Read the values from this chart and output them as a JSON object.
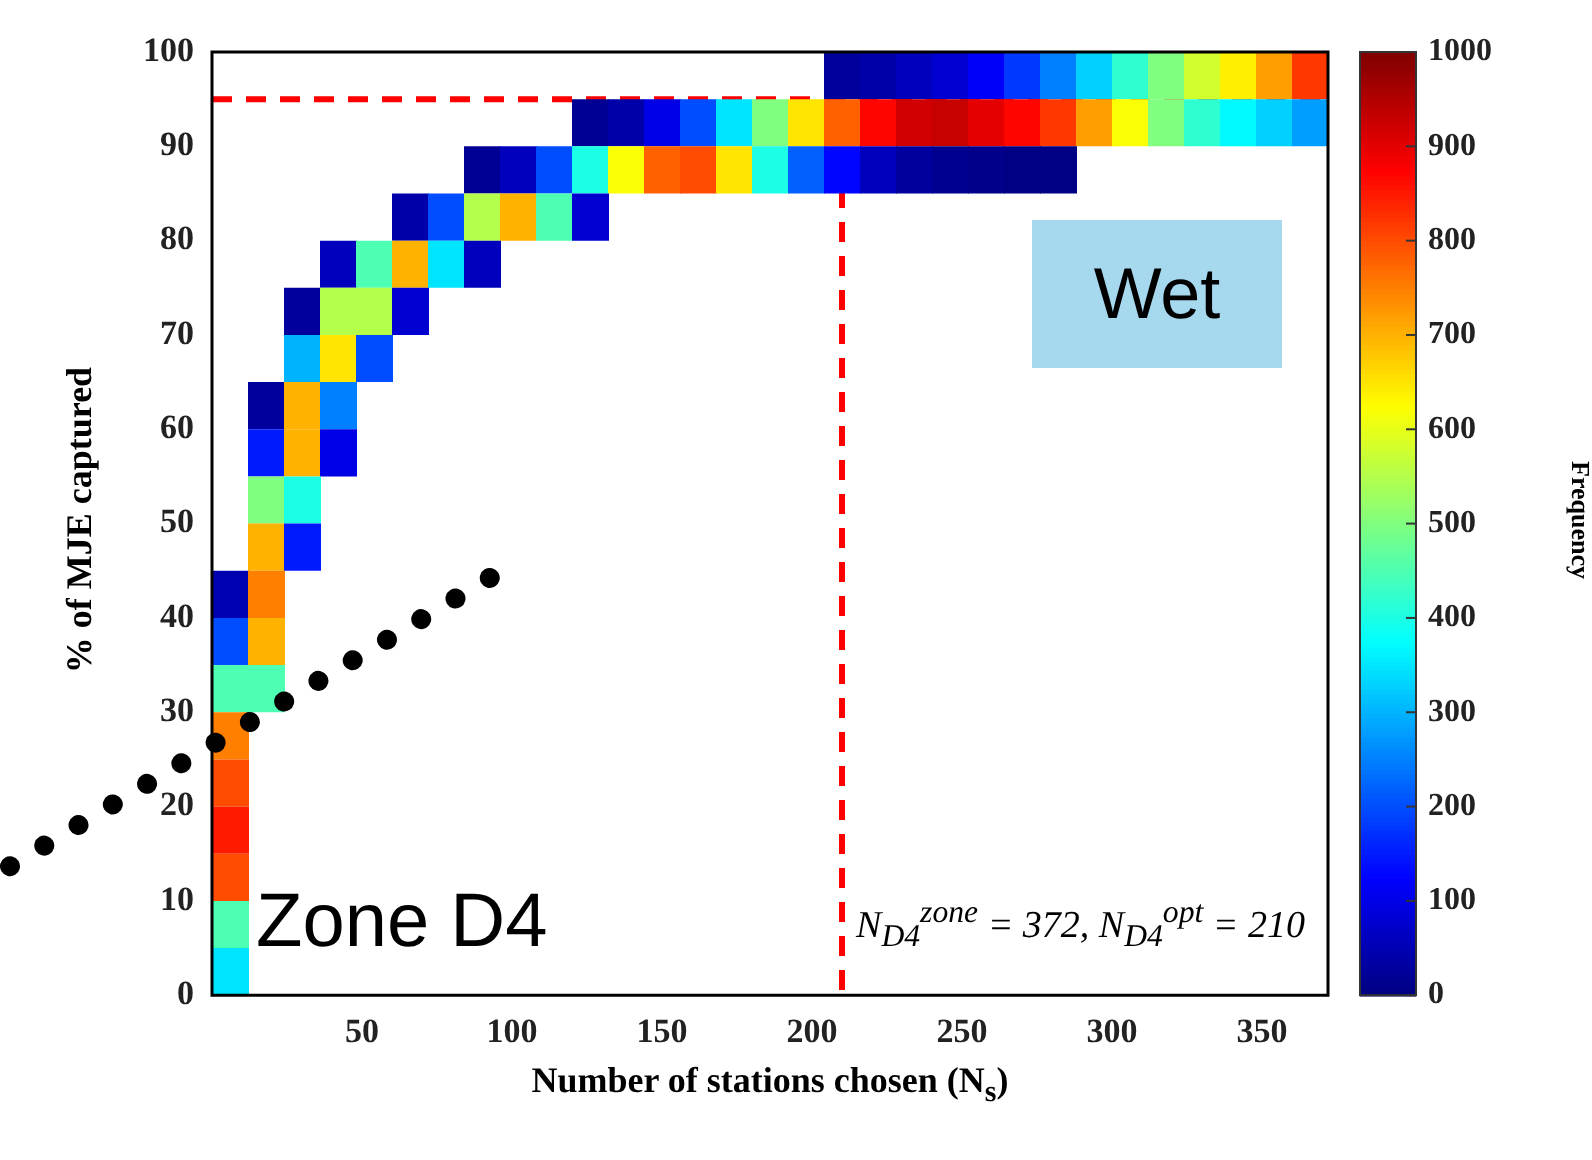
{
  "chart_data": {
    "type": "heatmap",
    "xlabel": "Number of stations chosen (N$_{s}$)",
    "ylabel": "% of MJE captured",
    "clabel": "Frequency",
    "x": [
      6,
      18,
      30,
      42,
      54,
      66,
      78,
      90,
      102,
      114,
      126,
      138,
      150,
      162,
      174,
      186,
      198,
      210,
      222,
      234,
      246,
      258,
      270,
      282,
      294,
      306,
      318,
      330,
      342,
      354,
      366
    ],
    "xlim": [
      0,
      372
    ],
    "xticks": [
      50,
      100,
      150,
      200,
      250,
      300,
      350
    ],
    "ylim": [
      0,
      100
    ],
    "yticks": [
      0,
      10,
      20,
      30,
      40,
      50,
      60,
      70,
      80,
      90,
      100
    ],
    "clim": [
      0,
      1000
    ],
    "cticks": [
      0,
      100,
      200,
      300,
      400,
      500,
      600,
      700,
      800,
      900,
      1000
    ],
    "cells": [
      [
        null,
        null,
        null,
        null,
        null,
        null,
        null,
        null,
        null,
        null,
        null,
        null,
        null,
        null,
        null,
        null,
        null,
        30,
        40,
        60,
        80,
        120,
        180,
        250,
        330,
        420,
        500,
        580,
        640,
        720,
        820
      ],
      [
        null,
        null,
        null,
        null,
        null,
        null,
        null,
        null,
        null,
        null,
        20,
        40,
        100,
        200,
        350,
        500,
        650,
        780,
        870,
        920,
        930,
        900,
        870,
        820,
        720,
        620,
        500,
        420,
        370,
        330,
        280
      ],
      [
        null,
        null,
        null,
        null,
        null,
        null,
        null,
        20,
        60,
        200,
        400,
        620,
        780,
        800,
        650,
        400,
        220,
        130,
        60,
        30,
        15,
        10,
        5,
        5,
        null,
        null,
        null,
        null,
        null,
        null,
        null
      ],
      [
        null,
        null,
        null,
        null,
        null,
        40,
        200,
        550,
        700,
        450,
        80,
        null,
        null,
        null,
        null,
        null,
        null,
        null,
        null,
        null,
        null,
        null,
        null,
        null,
        null,
        null,
        null,
        null,
        null,
        null,
        null
      ],
      [
        null,
        null,
        null,
        60,
        450,
        700,
        350,
        60,
        null,
        null,
        null,
        null,
        null,
        null,
        null,
        null,
        null,
        null,
        null,
        null,
        null,
        null,
        null,
        null,
        null,
        null,
        null,
        null,
        null,
        null,
        null
      ],
      [
        null,
        null,
        30,
        550,
        550,
        80,
        null,
        null,
        null,
        null,
        null,
        null,
        null,
        null,
        null,
        null,
        null,
        null,
        null,
        null,
        null,
        null,
        null,
        null,
        null,
        null,
        null,
        null,
        null,
        null,
        null
      ],
      [
        null,
        null,
        300,
        650,
        200,
        null,
        null,
        null,
        null,
        null,
        null,
        null,
        null,
        null,
        null,
        null,
        null,
        null,
        null,
        null,
        null,
        null,
        null,
        null,
        null,
        null,
        null,
        null,
        null,
        null,
        null
      ],
      [
        null,
        30,
        700,
        250,
        null,
        null,
        null,
        null,
        null,
        null,
        null,
        null,
        null,
        null,
        null,
        null,
        null,
        null,
        null,
        null,
        null,
        null,
        null,
        null,
        null,
        null,
        null,
        null,
        null,
        null,
        null
      ],
      [
        null,
        150,
        700,
        100,
        null,
        null,
        null,
        null,
        null,
        null,
        null,
        null,
        null,
        null,
        null,
        null,
        null,
        null,
        null,
        null,
        null,
        null,
        null,
        null,
        null,
        null,
        null,
        null,
        null,
        null,
        null
      ],
      [
        null,
        500,
        400,
        null,
        null,
        null,
        null,
        null,
        null,
        null,
        null,
        null,
        null,
        null,
        null,
        null,
        null,
        null,
        null,
        null,
        null,
        null,
        null,
        null,
        null,
        null,
        null,
        null,
        null,
        null,
        null
      ],
      [
        null,
        700,
        150,
        null,
        null,
        null,
        null,
        null,
        null,
        null,
        null,
        null,
        null,
        null,
        null,
        null,
        null,
        null,
        null,
        null,
        null,
        null,
        null,
        null,
        null,
        null,
        null,
        null,
        null,
        null,
        null
      ],
      [
        50,
        750,
        null,
        null,
        null,
        null,
        null,
        null,
        null,
        null,
        null,
        null,
        null,
        null,
        null,
        null,
        null,
        null,
        null,
        null,
        null,
        null,
        null,
        null,
        null,
        null,
        null,
        null,
        null,
        null,
        null
      ],
      [
        200,
        700,
        null,
        null,
        null,
        null,
        null,
        null,
        null,
        null,
        null,
        null,
        null,
        null,
        null,
        null,
        null,
        null,
        null,
        null,
        null,
        null,
        null,
        null,
        null,
        null,
        null,
        null,
        null,
        null,
        null
      ],
      [
        450,
        450,
        null,
        null,
        null,
        null,
        null,
        null,
        null,
        null,
        null,
        null,
        null,
        null,
        null,
        null,
        null,
        null,
        null,
        null,
        null,
        null,
        null,
        null,
        null,
        null,
        null,
        null,
        null,
        null,
        null
      ],
      [
        750,
        null,
        null,
        null,
        null,
        null,
        null,
        null,
        null,
        null,
        null,
        null,
        null,
        null,
        null,
        null,
        null,
        null,
        null,
        null,
        null,
        null,
        null,
        null,
        null,
        null,
        null,
        null,
        null,
        null,
        null
      ],
      [
        800,
        null,
        null,
        null,
        null,
        null,
        null,
        null,
        null,
        null,
        null,
        null,
        null,
        null,
        null,
        null,
        null,
        null,
        null,
        null,
        null,
        null,
        null,
        null,
        null,
        null,
        null,
        null,
        null,
        null,
        null
      ],
      [
        850,
        null,
        null,
        null,
        null,
        null,
        null,
        null,
        null,
        null,
        null,
        null,
        null,
        null,
        null,
        null,
        null,
        null,
        null,
        null,
        null,
        null,
        null,
        null,
        null,
        null,
        null,
        null,
        null,
        null,
        null
      ],
      [
        800,
        null,
        null,
        null,
        null,
        null,
        null,
        null,
        null,
        null,
        null,
        null,
        null,
        null,
        null,
        null,
        null,
        null,
        null,
        null,
        null,
        null,
        null,
        null,
        null,
        null,
        null,
        null,
        null,
        null,
        null
      ],
      [
        450,
        null,
        null,
        null,
        null,
        null,
        null,
        null,
        null,
        null,
        null,
        null,
        null,
        null,
        null,
        null,
        null,
        null,
        null,
        null,
        null,
        null,
        null,
        null,
        null,
        null,
        null,
        null,
        null,
        null,
        null
      ],
      [
        350,
        null,
        null,
        null,
        null,
        null,
        null,
        null,
        null,
        null,
        null,
        null,
        null,
        null,
        null,
        null,
        null,
        null,
        null,
        null,
        null,
        null,
        null,
        null,
        null,
        null,
        null,
        null,
        null,
        null,
        null
      ]
    ],
    "ref_lines": [
      {
        "axis": "y",
        "value": 95,
        "color": "#ff0000",
        "line_style": "dashed"
      },
      {
        "axis": "x",
        "value": 210,
        "color": "#ff0000",
        "line_style": "dashed"
      }
    ],
    "annotations": [
      "Wet",
      "Zone D4",
      "N$_{D4}$$^{zone}$ = 372, N$_{D4}$$^{opt}$ = 210"
    ],
    "grid": false,
    "legend": false
  }
}
